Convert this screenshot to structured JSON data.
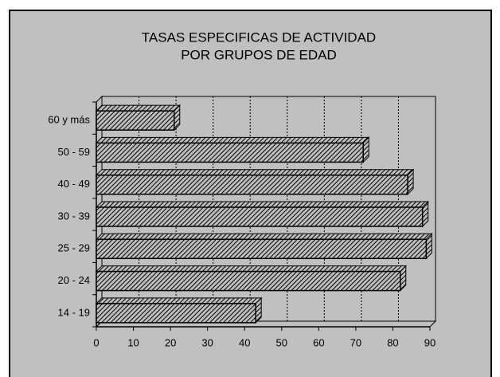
{
  "chart_data": {
    "type": "bar3d_horizontal",
    "title_lines": [
      "TASAS ESPECIFICAS DE ACTIVIDAD",
      "POR GRUPOS DE EDAD"
    ],
    "categories": [
      "60 y más",
      "50 - 59",
      "40 - 49",
      "30 - 39",
      "25 - 29",
      "20 - 24",
      "14 - 19"
    ],
    "values": [
      21,
      72,
      84,
      88,
      89,
      82,
      43
    ],
    "color": "#000000",
    "xlim": [
      0,
      90
    ],
    "xticks": [
      0,
      10,
      20,
      30,
      40,
      50,
      60,
      70,
      80,
      90
    ],
    "grid": true
  }
}
